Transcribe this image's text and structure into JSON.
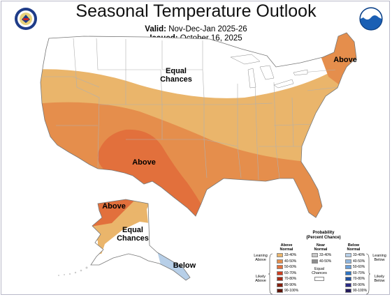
{
  "title": "Seasonal Temperature Outlook",
  "valid_label": "Valid:",
  "valid_value": "Nov-Dec-Jan 2025-26",
  "issued_label": "Issued:",
  "issued_value": "October 16, 2025",
  "region_labels": {
    "equal_chances_conus": [
      "Equal",
      "Chances"
    ],
    "above_southwest": "Above",
    "above_northeast": "Above",
    "above_alaska": "Above",
    "equal_chances_alaska": [
      "Equal",
      "Chances"
    ],
    "below_alaska": "Below"
  },
  "legend": {
    "title": "Probability",
    "subtitle": "(Percent Chance)",
    "above": {
      "header": [
        "Above",
        "Normal"
      ],
      "bins": [
        "33-40%",
        "40-50%",
        "50-60%",
        "60-70%",
        "70-80%",
        "80-90%",
        "90-100%"
      ],
      "colors": [
        "#eab56b",
        "#e58e4c",
        "#e2703c",
        "#cf3e1f",
        "#a52a15",
        "#85200e",
        "#5f1507"
      ]
    },
    "near": {
      "header": [
        "Near",
        "Normal"
      ],
      "bins": [
        "33-40%",
        "40-50%"
      ],
      "colors": [
        "#c8c8c8",
        "#8e8e8e"
      ],
      "equal_chances": [
        "Equal",
        "Chances"
      ]
    },
    "below": {
      "header": [
        "Below",
        "Normal"
      ],
      "bins": [
        "33-40%",
        "40-50%",
        "50-60%",
        "60-70%",
        "70-80%",
        "80-90%",
        "90-100%"
      ],
      "colors": [
        "#b7cfe8",
        "#8fb6e0",
        "#6a9fd8",
        "#2e74c2",
        "#1e4fa0",
        "#2a2a86",
        "#231b5c"
      ]
    },
    "leaning_above": [
      "Leaning",
      "Above"
    ],
    "likely_above": [
      "Likely",
      "Above"
    ],
    "leaning_below": [
      "Leaning",
      "Below"
    ],
    "likely_below": [
      "Likely",
      "Below"
    ]
  },
  "colors": {
    "c33_40_above": "#eab56b",
    "c40_50_above": "#e58e4c",
    "c50_60_above": "#e2703c",
    "c33_40_below": "#b7cfe8",
    "equal_chances": "#ffffff",
    "state_line": "#b0b0b0",
    "ocean": "#ffffff"
  },
  "logos": [
    "commerce-seal-logo",
    "noaa-logo"
  ]
}
